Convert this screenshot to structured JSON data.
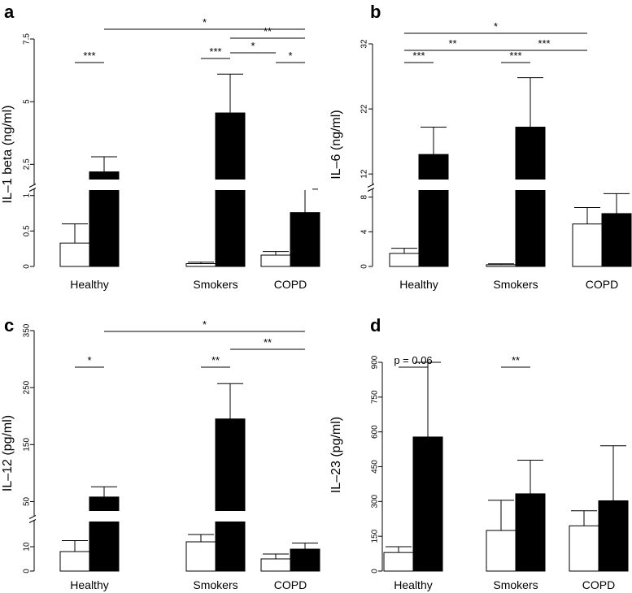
{
  "chart_data": [
    {
      "type": "bar",
      "panel": "a",
      "ylabel": "IL–1 beta (ng/ml)",
      "categories": [
        "Healthy",
        "Smokers",
        "COPD"
      ],
      "y_axis_break": true,
      "ylim_lower": [
        0,
        1.1
      ],
      "ylim_upper": [
        1.7,
        7.5
      ],
      "yticks_lower": [
        "0",
        "0.5",
        "1"
      ],
      "yticks_upper": [
        "2.5",
        "5",
        "7.5"
      ],
      "series": [
        {
          "name": "open",
          "color": "#ffffff",
          "values": [
            0.33,
            0.04,
            0.16
          ],
          "errors": [
            0.27,
            0.02,
            0.05
          ]
        },
        {
          "name": "filled",
          "color": "#000000",
          "values": [
            2.2,
            4.55,
            0.76
          ],
          "errors": [
            0.6,
            1.55,
            0.33
          ]
        }
      ],
      "significance": [
        {
          "label": "***",
          "from": [
            0,
            0
          ],
          "to": [
            0,
            1
          ]
        },
        {
          "label": "***",
          "from": [
            1,
            0
          ],
          "to": [
            1,
            1
          ]
        },
        {
          "label": "*",
          "from": [
            1,
            1
          ],
          "to": [
            2,
            0
          ]
        },
        {
          "label": "*",
          "from": [
            2,
            0
          ],
          "to": [
            2,
            1
          ]
        },
        {
          "label": "**",
          "from": [
            1,
            1
          ],
          "to": [
            2,
            1
          ]
        },
        {
          "label": "*",
          "from": [
            0,
            1
          ],
          "to": [
            2,
            1
          ]
        }
      ]
    },
    {
      "type": "bar",
      "panel": "b",
      "ylabel": "IL–6 (ng/ml)",
      "categories": [
        "Healthy",
        "Smokers",
        "COPD"
      ],
      "y_axis_break": true,
      "ylim_lower": [
        0,
        9
      ],
      "ylim_upper": [
        10.4,
        32
      ],
      "yticks_lower": [
        "0",
        "4",
        "8"
      ],
      "yticks_upper": [
        "12",
        "22",
        "32"
      ],
      "series": [
        {
          "name": "open",
          "color": "#ffffff",
          "values": [
            1.5,
            0.2,
            4.9
          ],
          "errors": [
            0.6,
            0.1,
            1.9
          ]
        },
        {
          "name": "filled",
          "color": "#000000",
          "values": [
            15,
            19.2,
            6.1
          ],
          "errors": [
            4.2,
            7.6,
            2.3
          ]
        }
      ],
      "significance": [
        {
          "label": "***",
          "from": [
            0,
            0
          ],
          "to": [
            0,
            1
          ]
        },
        {
          "label": "***",
          "from": [
            1,
            0
          ],
          "to": [
            1,
            1
          ]
        },
        {
          "label": "**",
          "from": [
            0,
            0
          ],
          "to": [
            1,
            0
          ]
        },
        {
          "label": "***",
          "from": [
            1,
            0
          ],
          "to": [
            2,
            0
          ]
        },
        {
          "label": "*",
          "from": [
            0,
            0
          ],
          "to": [
            2,
            0
          ]
        }
      ]
    },
    {
      "type": "bar",
      "panel": "c",
      "ylabel": "IL–12 (pg/ml)",
      "categories": [
        "Healthy",
        "Smokers",
        "COPD"
      ],
      "y_axis_break": true,
      "ylim_lower": [
        0,
        21
      ],
      "ylim_upper": [
        25,
        350
      ],
      "yticks_lower": [
        "0",
        "10"
      ],
      "yticks_upper": [
        "50",
        "150",
        "250",
        "350"
      ],
      "series": [
        {
          "name": "open",
          "color": "#ffffff",
          "values": [
            8,
            12,
            5
          ],
          "errors": [
            4.5,
            3,
            2
          ]
        },
        {
          "name": "filled",
          "color": "#000000",
          "values": [
            58,
            195,
            9
          ],
          "errors": [
            18,
            62,
            2.5
          ]
        }
      ],
      "significance": [
        {
          "label": "*",
          "from": [
            0,
            0
          ],
          "to": [
            0,
            1
          ]
        },
        {
          "label": "**",
          "from": [
            1,
            0
          ],
          "to": [
            1,
            1
          ]
        },
        {
          "label": "**",
          "from": [
            1,
            1
          ],
          "to": [
            2,
            1
          ]
        },
        {
          "label": "*",
          "from": [
            0,
            1
          ],
          "to": [
            2,
            1
          ]
        }
      ]
    },
    {
      "type": "bar",
      "panel": "d",
      "ylabel": "IL–23 (pg/ml)",
      "categories": [
        "Healthy",
        "Smokers",
        "COPD"
      ],
      "y_axis_break": false,
      "ylim": [
        0,
        900
      ],
      "yticks": [
        "0",
        "150",
        "300",
        "450",
        "600",
        "750",
        "900"
      ],
      "series": [
        {
          "name": "open",
          "color": "#ffffff",
          "values": [
            80,
            175,
            195
          ],
          "errors": [
            25,
            130,
            65
          ]
        },
        {
          "name": "filled",
          "color": "#000000",
          "values": [
            578,
            333,
            303
          ],
          "errors": [
            322,
            145,
            237
          ]
        }
      ],
      "significance": [
        {
          "label": "p = 0.06",
          "from": [
            0,
            0
          ],
          "to": [
            0,
            1
          ]
        },
        {
          "label": "**",
          "from": [
            1,
            0
          ],
          "to": [
            1,
            1
          ]
        }
      ]
    }
  ]
}
